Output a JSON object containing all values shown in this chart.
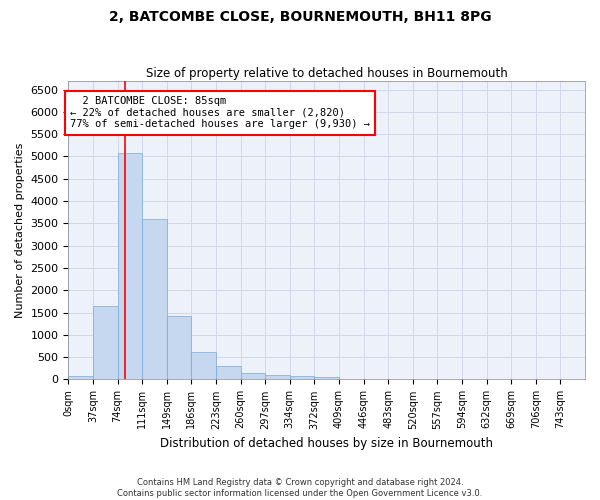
{
  "title": "2, BATCOMBE CLOSE, BOURNEMOUTH, BH11 8PG",
  "subtitle": "Size of property relative to detached houses in Bournemouth",
  "xlabel": "Distribution of detached houses by size in Bournemouth",
  "ylabel": "Number of detached properties",
  "footer_line1": "Contains HM Land Registry data © Crown copyright and database right 2024.",
  "footer_line2": "Contains public sector information licensed under the Open Government Licence v3.0.",
  "bar_labels": [
    "0sqm",
    "37sqm",
    "74sqm",
    "111sqm",
    "149sqm",
    "186sqm",
    "223sqm",
    "260sqm",
    "297sqm",
    "334sqm",
    "372sqm",
    "409sqm",
    "446sqm",
    "483sqm",
    "520sqm",
    "557sqm",
    "594sqm",
    "632sqm",
    "669sqm",
    "706sqm",
    "743sqm"
  ],
  "bar_values": [
    75,
    1650,
    5080,
    3600,
    1420,
    625,
    300,
    150,
    100,
    75,
    65,
    0,
    0,
    0,
    0,
    0,
    0,
    0,
    0,
    0,
    0
  ],
  "bar_color": "#c5d8f0",
  "bar_edge_color": "#7aaad4",
  "ylim": [
    0,
    6700
  ],
  "yticks": [
    0,
    500,
    1000,
    1500,
    2000,
    2500,
    3000,
    3500,
    4000,
    4500,
    5000,
    5500,
    6000,
    6500
  ],
  "property_size": 85,
  "property_label": "2 BATCOMBE CLOSE: 85sqm",
  "pct_smaller": "22%",
  "pct_smaller_count": "2,820",
  "pct_larger_semi": "77%",
  "pct_larger_semi_count": "9,930",
  "red_line_x": 85,
  "grid_color": "#d0d8ea",
  "background_color": "#edf1f9"
}
